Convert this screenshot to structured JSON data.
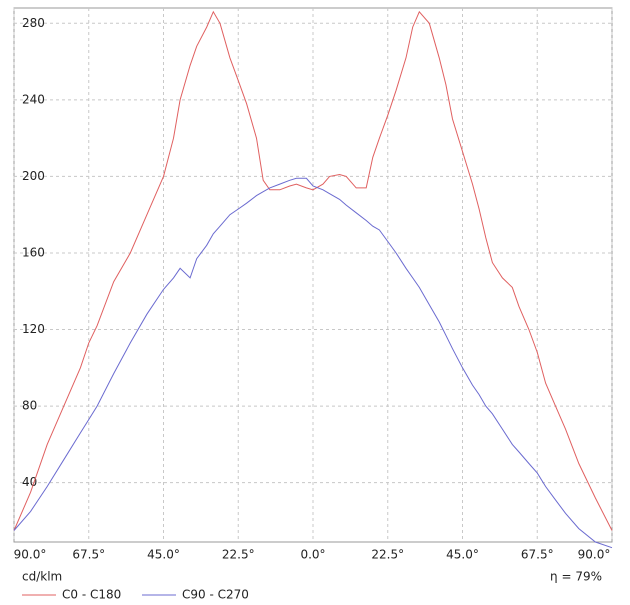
{
  "chart_data": {
    "type": "line",
    "unit_label": "cd/klm",
    "efficiency": "η = 79%",
    "x": [
      -90,
      -85,
      -80,
      -75,
      -70,
      -67.5,
      -65,
      -60,
      -55,
      -50,
      -45,
      -42,
      -40,
      -37,
      -35,
      -32,
      -30,
      -28,
      -25,
      -22.5,
      -20,
      -17,
      -15,
      -13,
      -10,
      -7,
      -5,
      -2,
      0,
      3,
      5,
      8,
      10,
      13,
      16,
      18,
      20,
      22.5,
      25,
      28,
      30,
      32,
      35,
      38,
      40,
      42,
      45,
      48,
      50,
      52,
      54,
      57,
      60,
      62,
      65,
      67.5,
      70,
      73,
      76,
      80,
      85,
      90
    ],
    "series": [
      {
        "name": "C0 - C180",
        "color": "#e06060",
        "values": [
          15,
          35,
          60,
          80,
          100,
          113,
          122,
          145,
          160,
          180,
          200,
          220,
          240,
          258,
          268,
          278,
          286,
          280,
          262,
          250,
          238,
          220,
          198,
          193,
          193,
          195,
          196,
          194,
          193,
          196,
          200,
          201,
          200,
          194,
          194,
          210,
          220,
          232,
          245,
          262,
          278,
          286,
          280,
          262,
          248,
          230,
          213,
          196,
          183,
          168,
          155,
          147,
          142,
          132,
          120,
          108,
          92,
          80,
          68,
          50,
          32,
          15
        ]
      },
      {
        "name": "C90 - C270",
        "color": "#6b6bd0",
        "values": [
          15,
          25,
          38,
          52,
          66,
          73,
          80,
          97,
          113,
          128,
          141,
          147,
          152,
          147,
          157,
          164,
          170,
          174,
          180,
          183,
          186,
          190,
          192,
          194,
          196,
          198,
          199,
          199,
          195,
          193,
          191,
          188,
          185,
          181,
          177,
          174,
          172,
          166,
          160,
          152,
          147,
          142,
          133,
          124,
          117,
          110,
          100,
          91,
          86,
          80,
          76,
          68,
          60,
          56,
          50,
          45,
          38,
          31,
          24,
          16,
          9,
          6
        ]
      }
    ],
    "xlim": [
      -90,
      90
    ],
    "ylim": [
      9,
      288
    ],
    "xticks": [
      {
        "value": -90,
        "label": "90.0°"
      },
      {
        "value": -67.5,
        "label": "67.5°"
      },
      {
        "value": -45,
        "label": "45.0°"
      },
      {
        "value": -22.5,
        "label": "22.5°"
      },
      {
        "value": 0,
        "label": "0.0°"
      },
      {
        "value": 22.5,
        "label": "22.5°"
      },
      {
        "value": 45,
        "label": "45.0°"
      },
      {
        "value": 67.5,
        "label": "67.5°"
      },
      {
        "value": 90,
        "label": "90.0°"
      }
    ],
    "yticks": [
      40,
      80,
      120,
      160,
      200,
      240,
      280
    ],
    "grid": true
  }
}
